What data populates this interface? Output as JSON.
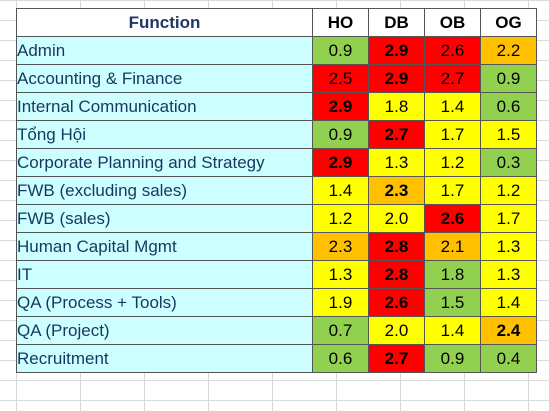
{
  "colors": {
    "green": "#92d050",
    "yellow": "#ffff00",
    "orange": "#ffc000",
    "red": "#ff0000",
    "function_bg": "#ccffff",
    "function_text": "#17375e"
  },
  "table": {
    "headers": [
      "Function",
      "HO",
      "DB",
      "OB",
      "OG"
    ],
    "rows": [
      {
        "name": "Admin",
        "cells": [
          {
            "v": "0.9",
            "c": "green",
            "b": false
          },
          {
            "v": "2.9",
            "c": "red",
            "b": true
          },
          {
            "v": "2.6",
            "c": "red",
            "b": false
          },
          {
            "v": "2.2",
            "c": "orange",
            "b": false
          }
        ]
      },
      {
        "name": "Accounting & Finance",
        "cells": [
          {
            "v": "2.5",
            "c": "red",
            "b": false
          },
          {
            "v": "2.9",
            "c": "red",
            "b": true
          },
          {
            "v": "2.7",
            "c": "red",
            "b": false
          },
          {
            "v": "0.9",
            "c": "green",
            "b": false
          }
        ]
      },
      {
        "name": "Internal Communication",
        "cells": [
          {
            "v": "2.9",
            "c": "red",
            "b": true
          },
          {
            "v": "1.8",
            "c": "yellow",
            "b": false
          },
          {
            "v": "1.4",
            "c": "yellow",
            "b": false
          },
          {
            "v": "0.6",
            "c": "green",
            "b": false
          }
        ]
      },
      {
        "name": "Tổng Hội",
        "cells": [
          {
            "v": "0.9",
            "c": "green",
            "b": false
          },
          {
            "v": "2.7",
            "c": "red",
            "b": true
          },
          {
            "v": "1.7",
            "c": "yellow",
            "b": false
          },
          {
            "v": "1.5",
            "c": "yellow",
            "b": false
          }
        ]
      },
      {
        "name": "Corporate Planning and Strategy",
        "cells": [
          {
            "v": "2.9",
            "c": "red",
            "b": true
          },
          {
            "v": "1.3",
            "c": "yellow",
            "b": false
          },
          {
            "v": "1.2",
            "c": "yellow",
            "b": false
          },
          {
            "v": "0.3",
            "c": "green",
            "b": false
          }
        ]
      },
      {
        "name": "FWB (excluding sales)",
        "cells": [
          {
            "v": "1.4",
            "c": "yellow",
            "b": false
          },
          {
            "v": "2.3",
            "c": "orange",
            "b": true
          },
          {
            "v": "1.7",
            "c": "yellow",
            "b": false
          },
          {
            "v": "1.2",
            "c": "yellow",
            "b": false
          }
        ]
      },
      {
        "name": "FWB (sales)",
        "cells": [
          {
            "v": "1.2",
            "c": "yellow",
            "b": false
          },
          {
            "v": "2.0",
            "c": "yellow",
            "b": false
          },
          {
            "v": "2.6",
            "c": "red",
            "b": true
          },
          {
            "v": "1.7",
            "c": "yellow",
            "b": false
          }
        ]
      },
      {
        "name": "Human Capital Mgmt",
        "cells": [
          {
            "v": "2.3",
            "c": "orange",
            "b": false
          },
          {
            "v": "2.8",
            "c": "red",
            "b": true
          },
          {
            "v": "2.1",
            "c": "orange",
            "b": false
          },
          {
            "v": "1.3",
            "c": "yellow",
            "b": false
          }
        ]
      },
      {
        "name": "IT",
        "cells": [
          {
            "v": "1.3",
            "c": "yellow",
            "b": false
          },
          {
            "v": "2.8",
            "c": "red",
            "b": true
          },
          {
            "v": "1.8",
            "c": "green",
            "b": false
          },
          {
            "v": "1.3",
            "c": "yellow",
            "b": false
          }
        ]
      },
      {
        "name": "QA (Process + Tools)",
        "cells": [
          {
            "v": "1.9",
            "c": "yellow",
            "b": false
          },
          {
            "v": "2.6",
            "c": "red",
            "b": true
          },
          {
            "v": "1.5",
            "c": "green",
            "b": false
          },
          {
            "v": "1.4",
            "c": "yellow",
            "b": false
          }
        ]
      },
      {
        "name": "QA (Project)",
        "cells": [
          {
            "v": "0.7",
            "c": "green",
            "b": false
          },
          {
            "v": "2.0",
            "c": "yellow",
            "b": false
          },
          {
            "v": "1.4",
            "c": "yellow",
            "b": false
          },
          {
            "v": "2.4",
            "c": "orange",
            "b": true
          }
        ]
      },
      {
        "name": "Recruitment",
        "cells": [
          {
            "v": "0.6",
            "c": "green",
            "b": false
          },
          {
            "v": "2.7",
            "c": "red",
            "b": true
          },
          {
            "v": "0.9",
            "c": "green",
            "b": false
          },
          {
            "v": "0.4",
            "c": "green",
            "b": false
          }
        ]
      }
    ]
  }
}
